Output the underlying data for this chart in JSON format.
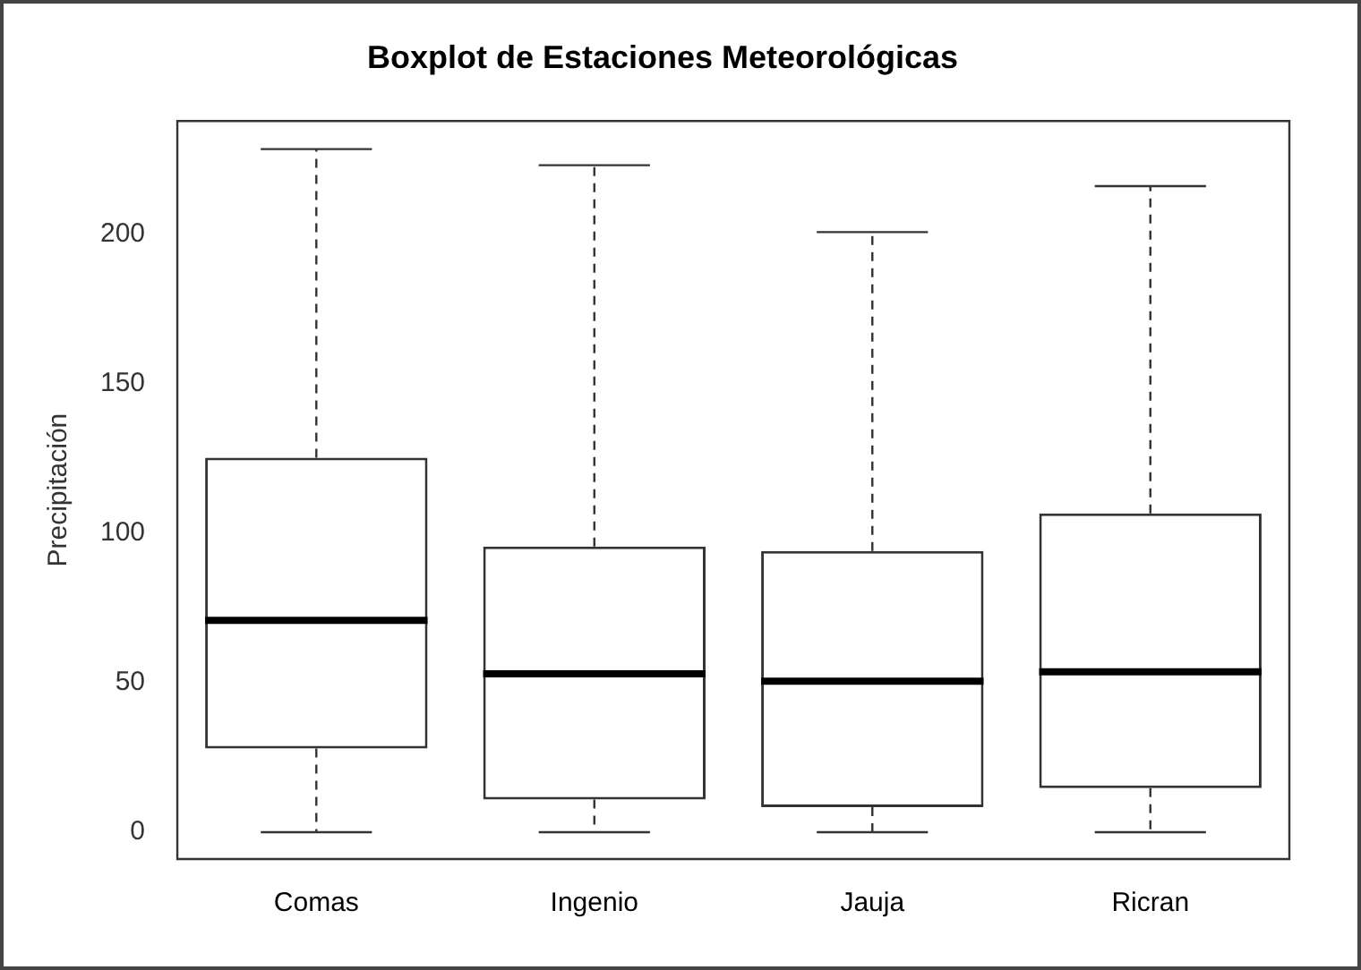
{
  "chart_data": {
    "type": "box",
    "title": "Boxplot de Estaciones Meteorológicas",
    "ylabel": "Precipitación",
    "categories": [
      "Comas",
      "Ingenio",
      "Jauja",
      "Ricran"
    ],
    "boxes": [
      {
        "low": 0,
        "q1": 28,
        "median": 70.9,
        "q3": 125.3,
        "high": 228.6
      },
      {
        "low": 0,
        "q1": 10.9,
        "median": 53,
        "q3": 95.6,
        "high": 223.2
      },
      {
        "low": 0,
        "q1": 8.4,
        "median": 50.5,
        "q3": 94.1,
        "high": 200.8
      },
      {
        "low": 0,
        "q1": 14.7,
        "median": 53.7,
        "q3": 106.7,
        "high": 216.2
      }
    ],
    "ylim": [
      -9,
      238
    ],
    "yticks": [
      0,
      50,
      100,
      150,
      200
    ]
  }
}
